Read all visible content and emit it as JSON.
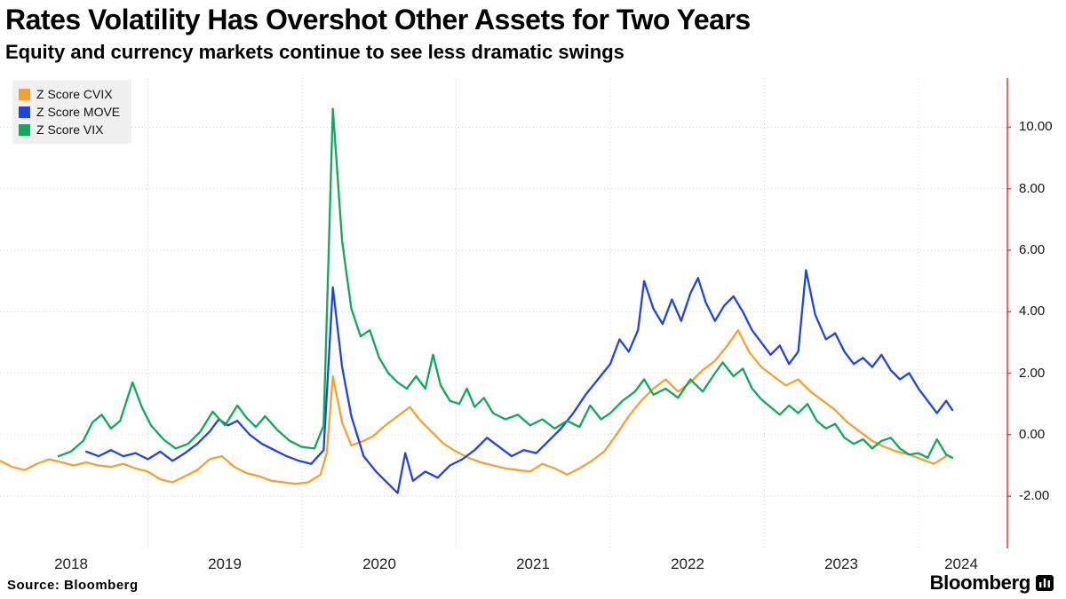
{
  "header": {
    "title": "Rates Volatility Has Overshot Other Assets for Two Years",
    "subtitle": "Equity and currency markets continue to see less dramatic swings"
  },
  "legend": {
    "items": [
      {
        "label": "Z Score CVIX",
        "color": "#F5A12D"
      },
      {
        "label": "Z Score MOVE",
        "color": "#2044E0"
      },
      {
        "label": "Z Score VIX",
        "color": "#10A85C"
      }
    ]
  },
  "footer": {
    "source": "Source: Bloomberg",
    "logo": "Bloomberg"
  },
  "chart_data": {
    "type": "line",
    "title": "Rates Volatility Has Overshot Other Assets for Two Years",
    "subtitle": "Equity and currency markets continue to see less dramatic swings",
    "xlabel": "",
    "ylabel": "",
    "grid": true,
    "legend_position": "top-left",
    "axis_color": "#F04438",
    "grid_color": "#d4d4d4",
    "xlim": [
      2018.04,
      2024.6
    ],
    "ylim": [
      -3.7,
      11.6
    ],
    "y_ticks": [
      {
        "label": "10.00",
        "v": 10
      },
      {
        "label": "8.00",
        "v": 8
      },
      {
        "label": "6.00",
        "v": 6
      },
      {
        "label": "4.00",
        "v": 4
      },
      {
        "label": "2.00",
        "v": 2
      },
      {
        "label": "0.00",
        "v": 0
      },
      {
        "label": "-2.00",
        "v": -2
      }
    ],
    "x_ticks": [
      {
        "label": "2018",
        "t": 2018.5
      },
      {
        "label": "2019",
        "t": 2019.5
      },
      {
        "label": "2020",
        "t": 2020.5
      },
      {
        "label": "2021",
        "t": 2021.5
      },
      {
        "label": "2022",
        "t": 2022.5
      },
      {
        "label": "2023",
        "t": 2023.5
      },
      {
        "label": "2024",
        "t": 2024.28
      }
    ],
    "x_grid_years": [
      2019,
      2020,
      2021,
      2022,
      2023,
      2024
    ],
    "series": [
      {
        "name": "Z Score CVIX",
        "color": "#F5A12D",
        "points": [
          [
            2018.04,
            -0.85
          ],
          [
            2018.12,
            -1.05
          ],
          [
            2018.2,
            -1.15
          ],
          [
            2018.28,
            -0.95
          ],
          [
            2018.36,
            -0.8
          ],
          [
            2018.44,
            -0.9
          ],
          [
            2018.52,
            -1.0
          ],
          [
            2018.6,
            -0.9
          ],
          [
            2018.68,
            -1.0
          ],
          [
            2018.76,
            -1.05
          ],
          [
            2018.84,
            -0.95
          ],
          [
            2018.92,
            -1.1
          ],
          [
            2019.0,
            -1.2
          ],
          [
            2019.08,
            -1.45
          ],
          [
            2019.16,
            -1.55
          ],
          [
            2019.24,
            -1.35
          ],
          [
            2019.32,
            -1.15
          ],
          [
            2019.4,
            -0.8
          ],
          [
            2019.48,
            -0.7
          ],
          [
            2019.56,
            -1.05
          ],
          [
            2019.64,
            -1.25
          ],
          [
            2019.72,
            -1.35
          ],
          [
            2019.8,
            -1.5
          ],
          [
            2019.88,
            -1.55
          ],
          [
            2019.96,
            -1.6
          ],
          [
            2020.04,
            -1.55
          ],
          [
            2020.12,
            -1.3
          ],
          [
            2020.16,
            -0.6
          ],
          [
            2020.2,
            1.9
          ],
          [
            2020.26,
            0.4
          ],
          [
            2020.32,
            -0.35
          ],
          [
            2020.4,
            -0.2
          ],
          [
            2020.46,
            -0.05
          ],
          [
            2020.54,
            0.3
          ],
          [
            2020.62,
            0.6
          ],
          [
            2020.7,
            0.9
          ],
          [
            2020.76,
            0.5
          ],
          [
            2020.84,
            0.1
          ],
          [
            2020.92,
            -0.3
          ],
          [
            2021.0,
            -0.55
          ],
          [
            2021.08,
            -0.75
          ],
          [
            2021.16,
            -0.9
          ],
          [
            2021.24,
            -1.0
          ],
          [
            2021.32,
            -1.1
          ],
          [
            2021.4,
            -1.15
          ],
          [
            2021.48,
            -1.2
          ],
          [
            2021.56,
            -0.95
          ],
          [
            2021.64,
            -1.1
          ],
          [
            2021.72,
            -1.3
          ],
          [
            2021.8,
            -1.1
          ],
          [
            2021.88,
            -0.85
          ],
          [
            2021.96,
            -0.55
          ],
          [
            2022.04,
            0.0
          ],
          [
            2022.12,
            0.6
          ],
          [
            2022.2,
            1.1
          ],
          [
            2022.28,
            1.5
          ],
          [
            2022.36,
            1.8
          ],
          [
            2022.44,
            1.4
          ],
          [
            2022.52,
            1.7
          ],
          [
            2022.6,
            2.1
          ],
          [
            2022.68,
            2.4
          ],
          [
            2022.76,
            2.9
          ],
          [
            2022.83,
            3.4
          ],
          [
            2022.9,
            2.7
          ],
          [
            2022.98,
            2.2
          ],
          [
            2023.06,
            1.9
          ],
          [
            2023.14,
            1.6
          ],
          [
            2023.22,
            1.8
          ],
          [
            2023.3,
            1.4
          ],
          [
            2023.38,
            1.1
          ],
          [
            2023.46,
            0.8
          ],
          [
            2023.54,
            0.4
          ],
          [
            2023.62,
            0.1
          ],
          [
            2023.7,
            -0.2
          ],
          [
            2023.78,
            -0.4
          ],
          [
            2023.86,
            -0.55
          ],
          [
            2023.94,
            -0.65
          ],
          [
            2024.02,
            -0.8
          ],
          [
            2024.1,
            -0.95
          ],
          [
            2024.18,
            -0.7
          ]
        ]
      },
      {
        "name": "Z Score MOVE",
        "color": "#2044E0",
        "points": [
          [
            2018.6,
            -0.55
          ],
          [
            2018.68,
            -0.7
          ],
          [
            2018.76,
            -0.5
          ],
          [
            2018.84,
            -0.7
          ],
          [
            2018.92,
            -0.6
          ],
          [
            2019.0,
            -0.8
          ],
          [
            2019.08,
            -0.55
          ],
          [
            2019.16,
            -0.85
          ],
          [
            2019.24,
            -0.6
          ],
          [
            2019.32,
            -0.3
          ],
          [
            2019.4,
            0.1
          ],
          [
            2019.46,
            0.5
          ],
          [
            2019.52,
            0.3
          ],
          [
            2019.58,
            0.45
          ],
          [
            2019.66,
            0.0
          ],
          [
            2019.74,
            -0.3
          ],
          [
            2019.82,
            -0.5
          ],
          [
            2019.9,
            -0.7
          ],
          [
            2019.98,
            -0.85
          ],
          [
            2020.06,
            -0.95
          ],
          [
            2020.14,
            -0.5
          ],
          [
            2020.2,
            4.8
          ],
          [
            2020.26,
            2.2
          ],
          [
            2020.32,
            0.6
          ],
          [
            2020.4,
            -0.7
          ],
          [
            2020.48,
            -1.2
          ],
          [
            2020.56,
            -1.6
          ],
          [
            2020.62,
            -1.9
          ],
          [
            2020.67,
            -0.6
          ],
          [
            2020.72,
            -1.5
          ],
          [
            2020.8,
            -1.2
          ],
          [
            2020.88,
            -1.4
          ],
          [
            2020.96,
            -1.0
          ],
          [
            2021.04,
            -0.8
          ],
          [
            2021.12,
            -0.5
          ],
          [
            2021.2,
            -0.1
          ],
          [
            2021.28,
            -0.4
          ],
          [
            2021.36,
            -0.7
          ],
          [
            2021.44,
            -0.5
          ],
          [
            2021.52,
            -0.6
          ],
          [
            2021.6,
            -0.2
          ],
          [
            2021.68,
            0.2
          ],
          [
            2021.76,
            0.7
          ],
          [
            2021.84,
            1.3
          ],
          [
            2021.92,
            1.8
          ],
          [
            2022.0,
            2.3
          ],
          [
            2022.06,
            3.1
          ],
          [
            2022.12,
            2.7
          ],
          [
            2022.18,
            3.4
          ],
          [
            2022.22,
            5.0
          ],
          [
            2022.28,
            4.1
          ],
          [
            2022.34,
            3.6
          ],
          [
            2022.4,
            4.4
          ],
          [
            2022.46,
            3.7
          ],
          [
            2022.52,
            4.6
          ],
          [
            2022.57,
            5.1
          ],
          [
            2022.62,
            4.3
          ],
          [
            2022.68,
            3.7
          ],
          [
            2022.74,
            4.2
          ],
          [
            2022.8,
            4.5
          ],
          [
            2022.86,
            4.0
          ],
          [
            2022.92,
            3.4
          ],
          [
            2022.98,
            3.0
          ],
          [
            2023.04,
            2.6
          ],
          [
            2023.1,
            2.9
          ],
          [
            2023.16,
            2.3
          ],
          [
            2023.22,
            2.7
          ],
          [
            2023.27,
            5.35
          ],
          [
            2023.33,
            3.9
          ],
          [
            2023.4,
            3.1
          ],
          [
            2023.46,
            3.3
          ],
          [
            2023.52,
            2.7
          ],
          [
            2023.58,
            2.3
          ],
          [
            2023.64,
            2.5
          ],
          [
            2023.7,
            2.2
          ],
          [
            2023.76,
            2.6
          ],
          [
            2023.82,
            2.1
          ],
          [
            2023.88,
            1.8
          ],
          [
            2023.94,
            2.0
          ],
          [
            2024.0,
            1.5
          ],
          [
            2024.06,
            1.1
          ],
          [
            2024.12,
            0.7
          ],
          [
            2024.18,
            1.1
          ],
          [
            2024.22,
            0.8
          ]
        ]
      },
      {
        "name": "Z Score VIX",
        "color": "#10A85C",
        "points": [
          [
            2018.42,
            -0.7
          ],
          [
            2018.5,
            -0.55
          ],
          [
            2018.58,
            -0.2
          ],
          [
            2018.64,
            0.4
          ],
          [
            2018.7,
            0.65
          ],
          [
            2018.76,
            0.2
          ],
          [
            2018.82,
            0.45
          ],
          [
            2018.9,
            1.7
          ],
          [
            2018.96,
            0.9
          ],
          [
            2019.02,
            0.3
          ],
          [
            2019.1,
            -0.15
          ],
          [
            2019.18,
            -0.45
          ],
          [
            2019.26,
            -0.3
          ],
          [
            2019.34,
            0.1
          ],
          [
            2019.42,
            0.75
          ],
          [
            2019.5,
            0.3
          ],
          [
            2019.58,
            0.95
          ],
          [
            2019.64,
            0.55
          ],
          [
            2019.7,
            0.25
          ],
          [
            2019.76,
            0.6
          ],
          [
            2019.84,
            0.15
          ],
          [
            2019.92,
            -0.2
          ],
          [
            2020.0,
            -0.4
          ],
          [
            2020.08,
            -0.45
          ],
          [
            2020.14,
            0.3
          ],
          [
            2020.2,
            10.6
          ],
          [
            2020.26,
            6.3
          ],
          [
            2020.32,
            4.1
          ],
          [
            2020.38,
            3.2
          ],
          [
            2020.44,
            3.4
          ],
          [
            2020.5,
            2.5
          ],
          [
            2020.56,
            2.0
          ],
          [
            2020.62,
            1.7
          ],
          [
            2020.68,
            1.5
          ],
          [
            2020.74,
            1.9
          ],
          [
            2020.8,
            1.5
          ],
          [
            2020.85,
            2.6
          ],
          [
            2020.9,
            1.6
          ],
          [
            2020.96,
            1.1
          ],
          [
            2021.02,
            1.0
          ],
          [
            2021.07,
            1.5
          ],
          [
            2021.12,
            0.9
          ],
          [
            2021.18,
            1.2
          ],
          [
            2021.24,
            0.7
          ],
          [
            2021.32,
            0.5
          ],
          [
            2021.4,
            0.65
          ],
          [
            2021.48,
            0.3
          ],
          [
            2021.56,
            0.5
          ],
          [
            2021.64,
            0.2
          ],
          [
            2021.72,
            0.45
          ],
          [
            2021.8,
            0.25
          ],
          [
            2021.87,
            0.95
          ],
          [
            2021.94,
            0.5
          ],
          [
            2022.0,
            0.7
          ],
          [
            2022.08,
            1.1
          ],
          [
            2022.16,
            1.4
          ],
          [
            2022.22,
            1.8
          ],
          [
            2022.28,
            1.3
          ],
          [
            2022.36,
            1.5
          ],
          [
            2022.44,
            1.2
          ],
          [
            2022.52,
            1.8
          ],
          [
            2022.6,
            1.4
          ],
          [
            2022.68,
            2.0
          ],
          [
            2022.73,
            2.35
          ],
          [
            2022.8,
            1.9
          ],
          [
            2022.86,
            2.15
          ],
          [
            2022.92,
            1.5
          ],
          [
            2022.98,
            1.15
          ],
          [
            2023.04,
            0.9
          ],
          [
            2023.1,
            0.65
          ],
          [
            2023.16,
            0.95
          ],
          [
            2023.22,
            0.7
          ],
          [
            2023.28,
            1.0
          ],
          [
            2023.34,
            0.45
          ],
          [
            2023.4,
            0.2
          ],
          [
            2023.46,
            0.35
          ],
          [
            2023.52,
            -0.1
          ],
          [
            2023.58,
            -0.3
          ],
          [
            2023.64,
            -0.15
          ],
          [
            2023.7,
            -0.45
          ],
          [
            2023.76,
            -0.2
          ],
          [
            2023.82,
            -0.1
          ],
          [
            2023.88,
            -0.45
          ],
          [
            2023.94,
            -0.65
          ],
          [
            2024.0,
            -0.6
          ],
          [
            2024.06,
            -0.75
          ],
          [
            2024.12,
            -0.15
          ],
          [
            2024.18,
            -0.65
          ],
          [
            2024.22,
            -0.75
          ]
        ]
      }
    ]
  }
}
